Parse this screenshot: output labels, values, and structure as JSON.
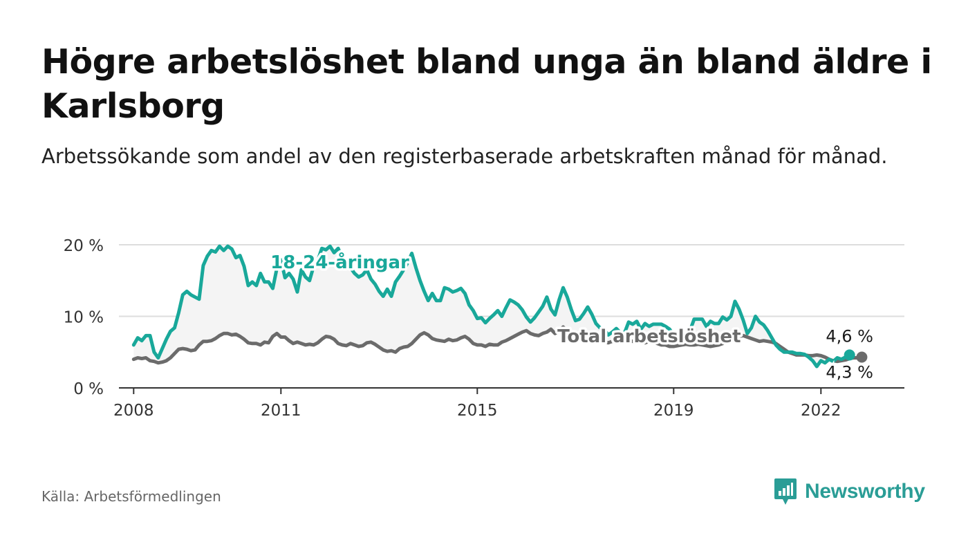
{
  "title": "Högre arbetslöshet bland unga än bland äldre i Karlsborg",
  "subtitle": "Arbetssökande som andel av den registerbaserade arbetskraften månad för månad.",
  "source": "Källa: Arbetsförmedlingen",
  "brand": {
    "name": "Newsworthy",
    "icon": "newsworthy-logo-icon"
  },
  "colors": {
    "youth": "#19a89a",
    "total": "#6b6b6b",
    "band": "#f4f4f4",
    "grid": "#dddddd",
    "axis": "#333333"
  },
  "chart_data": {
    "type": "line",
    "x_start": 2008.0,
    "x_step": 0.08333,
    "ylim": [
      0,
      20
    ],
    "xlim": [
      2007.7,
      2023.7
    ],
    "yticks": [
      0,
      10,
      20
    ],
    "ytick_labels": [
      "0 %",
      "10 %",
      "20 %"
    ],
    "xticks": [
      2008,
      2011,
      2015,
      2019,
      2022
    ],
    "xtick_labels": [
      "2008",
      "2011",
      "2015",
      "2019",
      "2022"
    ],
    "series": [
      {
        "name": "18-24-åringar",
        "label": "18-24-åringar",
        "label_anchor": [
          2012.2,
          16.7
        ],
        "end_label": "4,6 %",
        "values": [
          6.0,
          7.0,
          6.6,
          7.3,
          7.3,
          5.0,
          4.2,
          5.5,
          6.8,
          7.9,
          8.4,
          10.5,
          13.0,
          13.5,
          13.0,
          12.7,
          12.4,
          17.1,
          18.4,
          19.2,
          19.0,
          19.8,
          19.2,
          19.8,
          19.4,
          18.2,
          18.5,
          17.0,
          14.3,
          14.8,
          14.3,
          16.0,
          14.8,
          14.8,
          13.9,
          16.7,
          17.9,
          15.4,
          16.0,
          15.2,
          13.4,
          16.5,
          15.5,
          15.0,
          17.0,
          17.8,
          19.5,
          19.3,
          19.8,
          18.9,
          19.5,
          18.2,
          17.6,
          16.8,
          16.0,
          15.5,
          15.8,
          16.5,
          15.2,
          14.5,
          13.5,
          12.8,
          13.8,
          12.8,
          14.8,
          15.6,
          16.5,
          17.5,
          18.8,
          16.8,
          15.0,
          13.5,
          12.2,
          13.2,
          12.2,
          12.2,
          14.0,
          13.8,
          13.4,
          13.6,
          13.9,
          13.2,
          11.6,
          10.8,
          9.7,
          9.8,
          9.1,
          9.7,
          10.2,
          10.8,
          10.0,
          11.2,
          12.3,
          12.0,
          11.6,
          10.9,
          9.9,
          9.2,
          9.8,
          10.6,
          11.4,
          12.7,
          11.0,
          10.2,
          12.3,
          14.0,
          12.7,
          10.9,
          9.4,
          9.6,
          10.4,
          11.3,
          10.3,
          9.0,
          8.4,
          8.2,
          7.4,
          7.8,
          8.3,
          7.7,
          7.7,
          9.2,
          8.9,
          9.3,
          8.2,
          9.0,
          8.6,
          8.9,
          8.9,
          8.9,
          8.6,
          8.2,
          7.4,
          6.8,
          6.5,
          7.0,
          8.0,
          9.6,
          9.6,
          9.6,
          8.6,
          9.3,
          9.0,
          9.0,
          9.9,
          9.5,
          10.0,
          12.1,
          11.0,
          9.5,
          7.6,
          8.4,
          10.0,
          9.2,
          8.8,
          8.0,
          7.0,
          6.0,
          5.4,
          5.0,
          5.0,
          5.0,
          4.8,
          4.8,
          4.7,
          4.3,
          3.8,
          3.0,
          3.8,
          3.5,
          4.0,
          3.7,
          4.2,
          4.0,
          4.3,
          4.6
        ]
      },
      {
        "name": "Total arbetslöshet",
        "label": "Total arbetslöshet",
        "label_anchor": [
          2018.5,
          6.4
        ],
        "end_label": "4,3 %",
        "values": [
          4.0,
          4.2,
          4.1,
          4.2,
          3.8,
          3.7,
          3.5,
          3.6,
          3.8,
          4.2,
          4.8,
          5.4,
          5.5,
          5.4,
          5.2,
          5.3,
          6.0,
          6.5,
          6.5,
          6.6,
          6.9,
          7.3,
          7.6,
          7.6,
          7.4,
          7.5,
          7.2,
          6.8,
          6.3,
          6.2,
          6.2,
          6.0,
          6.4,
          6.3,
          7.2,
          7.6,
          7.1,
          7.1,
          6.6,
          6.2,
          6.4,
          6.2,
          6.0,
          6.1,
          6.0,
          6.3,
          6.8,
          7.2,
          7.1,
          6.8,
          6.2,
          6.0,
          5.9,
          6.2,
          6.0,
          5.8,
          5.9,
          6.3,
          6.4,
          6.1,
          5.7,
          5.3,
          5.1,
          5.2,
          5.0,
          5.5,
          5.7,
          5.8,
          6.2,
          6.8,
          7.4,
          7.7,
          7.4,
          6.9,
          6.7,
          6.6,
          6.5,
          6.8,
          6.6,
          6.7,
          7.0,
          7.2,
          6.8,
          6.2,
          6.0,
          6.0,
          5.8,
          6.1,
          6.0,
          6.0,
          6.4,
          6.6,
          6.9,
          7.2,
          7.5,
          7.8,
          8.0,
          7.6,
          7.4,
          7.3,
          7.6,
          7.8,
          8.2,
          7.6,
          8.0,
          8.5,
          8.0,
          7.5,
          7.4,
          7.2,
          7.4,
          7.3,
          7.0,
          6.8,
          6.7,
          6.5,
          6.3,
          6.5,
          6.6,
          6.6,
          6.4,
          6.6,
          6.5,
          6.7,
          6.4,
          6.3,
          6.5,
          6.4,
          6.2,
          6.0,
          6.0,
          5.8,
          5.8,
          5.9,
          6.0,
          6.1,
          6.0,
          6.0,
          6.1,
          6.0,
          5.9,
          5.8,
          5.9,
          6.0,
          6.2,
          6.5,
          7.0,
          6.9,
          7.2,
          7.3,
          7.1,
          6.9,
          6.7,
          6.5,
          6.6,
          6.5,
          6.4,
          6.2,
          5.8,
          5.4,
          5.0,
          4.8,
          4.6,
          4.6,
          4.6,
          4.5,
          4.5,
          4.6,
          4.5,
          4.3,
          4.0,
          3.8,
          3.7,
          3.8,
          3.9,
          4.1,
          4.2,
          4.2,
          4.3
        ]
      }
    ]
  }
}
